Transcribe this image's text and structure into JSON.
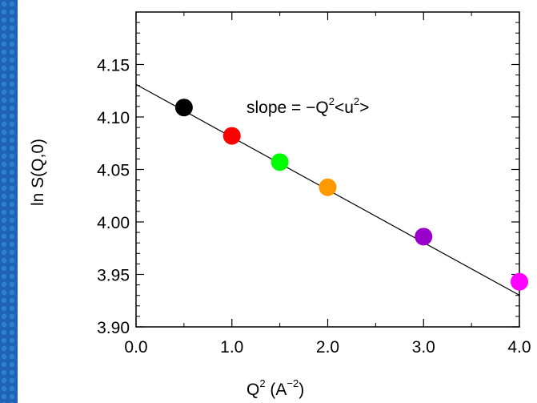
{
  "chart_data": {
    "type": "scatter",
    "x": [
      0.5,
      1.0,
      1.5,
      2.0,
      3.0,
      4.0
    ],
    "y": [
      4.109,
      4.082,
      4.057,
      4.033,
      3.986,
      3.943
    ],
    "point_colors": [
      "#000000",
      "#ff0000",
      "#00ff00",
      "#ff9900",
      "#9900cc",
      "#ff00ff"
    ],
    "fit_line": {
      "intercept": 4.131,
      "slope": -0.0502
    },
    "xlim": [
      0.0,
      4.0
    ],
    "ylim": [
      3.9,
      4.2
    ],
    "xticks": [
      "0.0",
      "1.0",
      "2.0",
      "3.0",
      "4.0"
    ],
    "yticks": [
      "3.90",
      "3.95",
      "4.00",
      "4.05",
      "4.10",
      "4.15"
    ],
    "xlabel": {
      "base": "Q",
      "sup1": "2",
      "mid": " (A",
      "sup2": "−2",
      "end": ")"
    },
    "ylabel": "ln S(Q,0)",
    "annotation": {
      "pre": "slope = −Q",
      "sup1": "2",
      "mid": "<u",
      "sup2": "2",
      "end": ">"
    },
    "grid": false
  },
  "colors": {
    "background": "#1d62b3",
    "panel": "#ffffff"
  }
}
